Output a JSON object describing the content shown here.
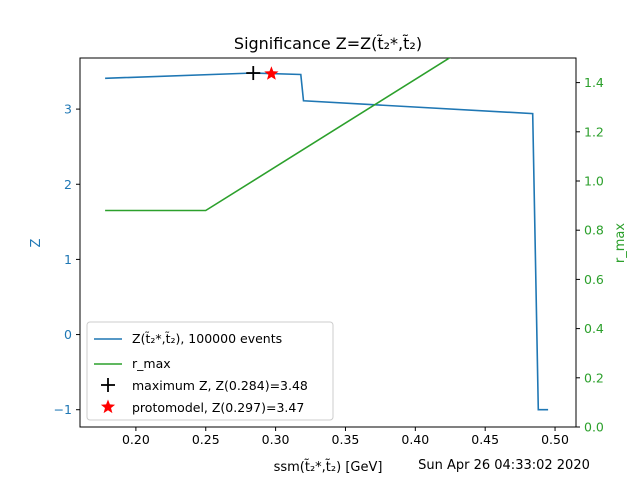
{
  "colors": {
    "z_series": "#1f77b4",
    "rmax_series": "#2ca02c",
    "max_marker": "#000000",
    "protomodel_marker": "#ff0000",
    "axis": "#000000"
  },
  "chart_data": {
    "type": "line",
    "title": "Significance Z=Z(t̃₂*,t̃₂)",
    "xlabel": "ssm(t̃₂*,t̃₂) [GeV]",
    "ylabel_left": "Z",
    "ylabel_right": "r_max",
    "xlim": [
      0.16,
      0.515
    ],
    "ylim_left": [
      -1.23,
      3.68
    ],
    "ylim_right": [
      0.0,
      1.5
    ],
    "x_ticks": [
      0.2,
      0.25,
      0.3,
      0.35,
      0.4,
      0.45,
      0.5
    ],
    "x_tick_labels": [
      "0.20",
      "0.25",
      "0.30",
      "0.35",
      "0.40",
      "0.45",
      "0.50"
    ],
    "y_left_ticks": [
      -1,
      0,
      1,
      2,
      3
    ],
    "y_left_tick_labels": [
      "−1",
      "0",
      "1",
      "2",
      "3"
    ],
    "y_right_ticks": [
      0.0,
      0.2,
      0.4,
      0.6,
      0.8,
      1.0,
      1.2,
      1.4
    ],
    "y_right_tick_labels": [
      "0.0",
      "0.2",
      "0.4",
      "0.6",
      "0.8",
      "1.0",
      "1.2",
      "1.4"
    ],
    "grid": false,
    "legend_position": "lower-left",
    "series": [
      {
        "name": "Z(t̃₂*,t̃₂), 100000 events",
        "axis": "left",
        "x": [
          0.178,
          0.284,
          0.318,
          0.32,
          0.484,
          0.488,
          0.495
        ],
        "y": [
          3.41,
          3.48,
          3.46,
          3.11,
          2.94,
          -1.0,
          -1.0
        ]
      },
      {
        "name": "r_max",
        "axis": "right",
        "x": [
          0.178,
          0.25,
          0.43
        ],
        "y": [
          0.88,
          0.88,
          1.52
        ]
      }
    ],
    "markers": [
      {
        "name": "maximum Z, Z(0.284)=3.48",
        "x": 0.284,
        "y": 3.48,
        "symbol": "plus"
      },
      {
        "name": "protomodel, Z(0.297)=3.47",
        "x": 0.297,
        "y": 3.47,
        "symbol": "star"
      }
    ],
    "footer_text": "Sun Apr 26 04:33:02 2020"
  }
}
